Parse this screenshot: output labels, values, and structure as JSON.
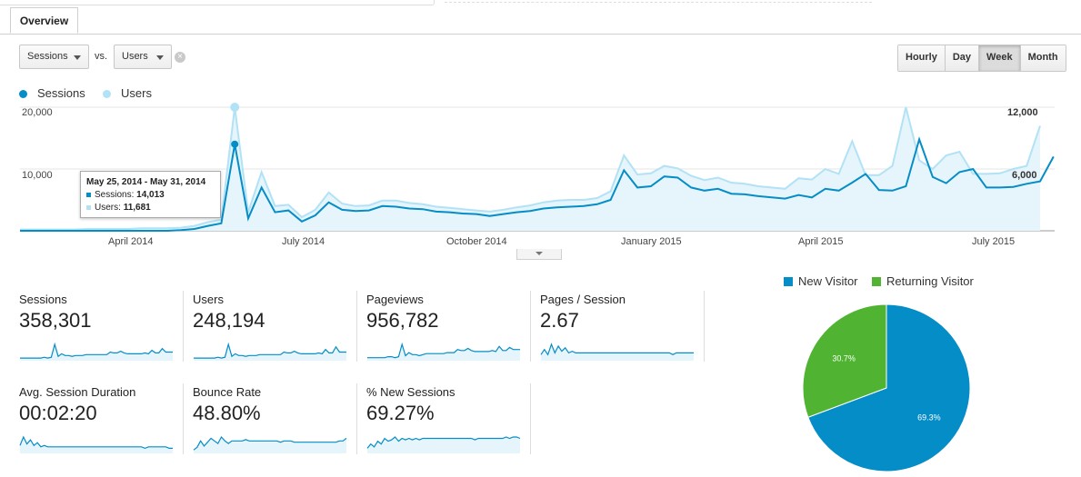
{
  "tabs": {
    "overview": "Overview"
  },
  "controls": {
    "metric1": "Sessions",
    "vs_label": "vs.",
    "metric2": "Users",
    "clear_symbol": "×",
    "granularity": [
      "Hourly",
      "Day",
      "Week",
      "Month"
    ],
    "active_granularity": "Week"
  },
  "chart_legend": {
    "series1": "Sessions",
    "series2": "Users"
  },
  "chart_data": {
    "type": "area",
    "x_ticks": [
      "April 2014",
      "July 2014",
      "October 2014",
      "January 2015",
      "April 2015",
      "July 2015"
    ],
    "left_axis_ticks": [
      "20,000",
      "10,000"
    ],
    "right_axis_ticks": [
      "12,000",
      "6,000"
    ],
    "ylim": [
      0,
      20000
    ],
    "grid": true,
    "series": [
      {
        "name": "Sessions",
        "color": "#058dc7",
        "values": [
          0,
          0,
          0,
          0,
          0,
          0,
          0,
          0,
          0,
          0,
          0,
          0,
          100,
          300,
          800,
          1200,
          14013,
          2000,
          7000,
          3000,
          3300,
          1500,
          2500,
          4600,
          3400,
          3200,
          3300,
          4000,
          3900,
          3600,
          3500,
          3100,
          3000,
          2800,
          2700,
          2400,
          2700,
          3000,
          3200,
          3600,
          3800,
          3900,
          4000,
          4300,
          5000,
          9800,
          7000,
          7200,
          8800,
          8600,
          7000,
          6500,
          6800,
          6000,
          5900,
          5600,
          5400,
          5200,
          5800,
          5400,
          6800,
          6500,
          7800,
          9200,
          6600,
          6500,
          7200,
          14800,
          8700,
          7700,
          9500,
          10000,
          7000,
          7000,
          7100,
          7600,
          8000,
          12000
        ]
      },
      {
        "name": "Users",
        "color": "#b2e2f5",
        "values": [
          200,
          200,
          200,
          200,
          200,
          300,
          300,
          300,
          300,
          400,
          400,
          400,
          500,
          800,
          1400,
          1800,
          20000,
          3000,
          9500,
          4000,
          4200,
          2200,
          3400,
          6200,
          4400,
          4000,
          4100,
          4900,
          4900,
          4500,
          4300,
          3900,
          3700,
          3500,
          3300,
          3100,
          3400,
          3800,
          4100,
          4600,
          4900,
          5000,
          5000,
          5300,
          6400,
          12200,
          9100,
          9300,
          10500,
          10100,
          8900,
          8200,
          8600,
          7800,
          7600,
          7200,
          7000,
          6800,
          8500,
          8300,
          10000,
          9200,
          14500,
          9000,
          9000,
          10500,
          20000,
          11400,
          10000,
          12200,
          12800,
          9200,
          9200,
          9300,
          10000,
          10500,
          17000
        ]
      }
    ]
  },
  "tooltip": {
    "title": "May 25, 2014 - May 31, 2014",
    "sessions_label": "Sessions:",
    "sessions_value": "14,013",
    "users_label": "Users:",
    "users_value": "11,681"
  },
  "metrics": [
    {
      "label": "Sessions",
      "value": "358,301",
      "spark": [
        2,
        2,
        2,
        2,
        2,
        2,
        2,
        3,
        2,
        3,
        18,
        4,
        7,
        5,
        5,
        4,
        5,
        5,
        5,
        6,
        6,
        6,
        6,
        6,
        6,
        6,
        9,
        8,
        8,
        10,
        8,
        7,
        7,
        7,
        7,
        7,
        8,
        7,
        11,
        8,
        8,
        13,
        9,
        9,
        9
      ]
    },
    {
      "label": "Users",
      "value": "248,194",
      "spark": [
        2,
        2,
        2,
        2,
        2,
        2,
        2,
        3,
        2,
        3,
        18,
        4,
        7,
        5,
        5,
        4,
        5,
        5,
        5,
        6,
        6,
        6,
        6,
        6,
        6,
        6,
        9,
        8,
        8,
        10,
        8,
        7,
        7,
        7,
        7,
        7,
        8,
        7,
        12,
        8,
        8,
        15,
        9,
        9,
        9
      ]
    },
    {
      "label": "Pageviews",
      "value": "956,782",
      "spark": [
        2,
        2,
        2,
        2,
        2,
        2,
        3,
        3,
        2,
        3,
        15,
        4,
        7,
        5,
        5,
        4,
        5,
        6,
        6,
        6,
        6,
        6,
        6,
        7,
        7,
        7,
        10,
        9,
        9,
        11,
        9,
        8,
        8,
        8,
        8,
        8,
        9,
        8,
        13,
        9,
        9,
        12,
        10,
        10,
        10
      ]
    },
    {
      "label": "Pages / Session",
      "value": "2.67",
      "spark": [
        3,
        6,
        3,
        9,
        4,
        8,
        5,
        7,
        4,
        5,
        4,
        4,
        4,
        4,
        4,
        4,
        4,
        4,
        4,
        4,
        4,
        4,
        4,
        4,
        4,
        4,
        4,
        4,
        4,
        4,
        4,
        4,
        4,
        4,
        4,
        4,
        4,
        4,
        3,
        4,
        4,
        4,
        4,
        4,
        4
      ]
    },
    {
      "label": "Avg. Session Duration",
      "value": "00:02:20",
      "spark": [
        5,
        11,
        6,
        9,
        5,
        7,
        4,
        5,
        4,
        4,
        4,
        4,
        4,
        4,
        4,
        4,
        4,
        4,
        4,
        4,
        4,
        4,
        4,
        4,
        4,
        4,
        4,
        4,
        4,
        4,
        4,
        4,
        4,
        4,
        4,
        4,
        3,
        4,
        4,
        4,
        4,
        4,
        4,
        3,
        3
      ]
    },
    {
      "label": "Bounce Rate",
      "value": "48.80%",
      "spark": [
        2,
        4,
        9,
        5,
        8,
        11,
        9,
        7,
        12,
        9,
        7,
        9,
        9,
        9,
        9,
        10,
        9,
        9,
        9,
        9,
        9,
        9,
        9,
        9,
        9,
        8,
        9,
        9,
        9,
        8,
        8,
        8,
        8,
        8,
        8,
        8,
        8,
        8,
        8,
        8,
        8,
        8,
        9,
        9,
        11
      ]
    },
    {
      "label": "% New Sessions",
      "value": "69.27%",
      "spark": [
        3,
        6,
        4,
        8,
        6,
        10,
        8,
        9,
        11,
        8,
        10,
        9,
        10,
        9,
        10,
        9,
        10,
        10,
        10,
        10,
        10,
        10,
        10,
        10,
        10,
        10,
        10,
        10,
        10,
        10,
        10,
        9,
        10,
        10,
        10,
        10,
        10,
        10,
        10,
        10,
        11,
        10,
        11,
        11,
        10
      ]
    }
  ],
  "pie": {
    "legend": [
      {
        "label": "New Visitor",
        "color": "#058dc7"
      },
      {
        "label": "Returning Visitor",
        "color": "#50b432"
      }
    ],
    "slices": [
      {
        "label": "69.3%",
        "value": 69.3,
        "color": "#058dc7"
      },
      {
        "label": "30.7%",
        "value": 30.7,
        "color": "#50b432"
      }
    ]
  }
}
